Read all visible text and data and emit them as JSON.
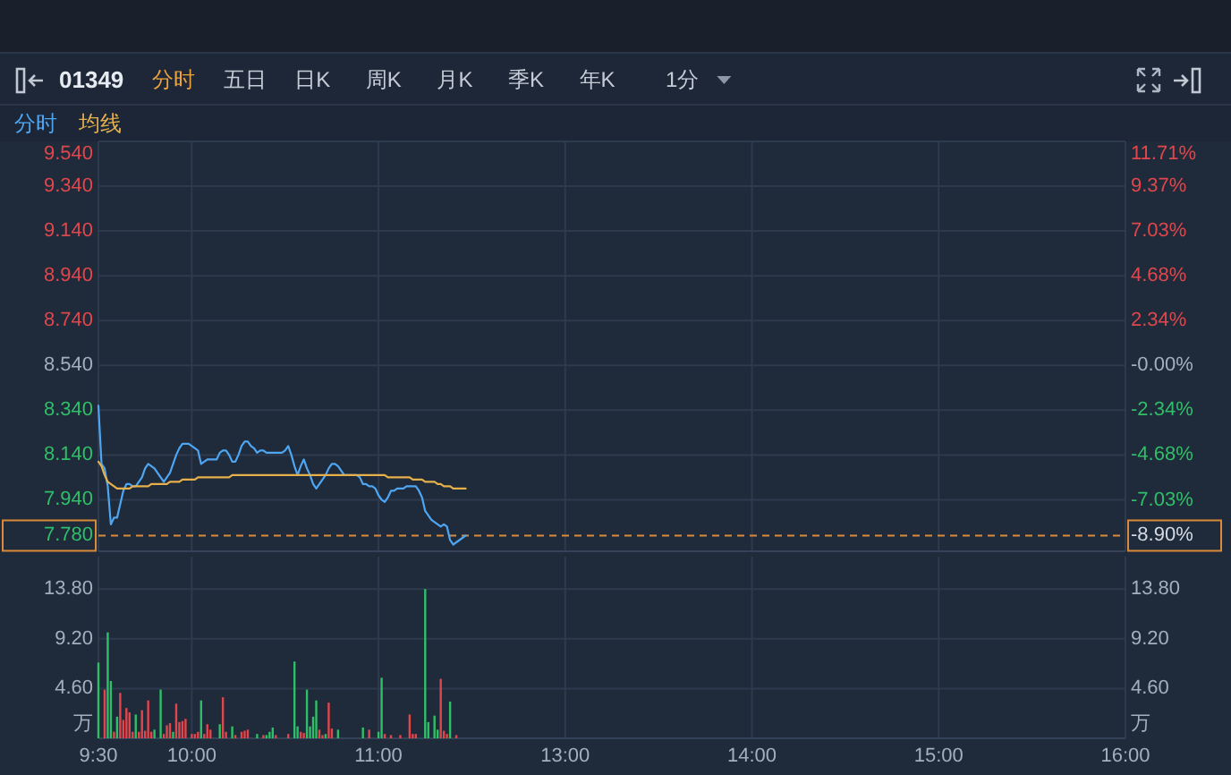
{
  "chart_data": [
    {
      "type": "line",
      "title": "01349",
      "annotations": [
        "分时",
        "五日",
        "日K",
        "周K",
        "月K",
        "季K",
        "年K",
        "1分",
        "-8.90%"
      ],
      "categories": [
        null,
        null,
        null,
        null,
        null,
        null,
        null,
        null,
        null,
        null,
        null,
        null,
        null,
        null,
        null,
        null,
        null,
        null,
        null,
        null,
        null,
        null,
        null,
        null,
        null,
        null,
        null,
        null,
        null,
        null,
        null,
        null,
        null,
        null,
        null,
        null,
        null,
        null,
        null,
        null,
        null,
        null,
        null,
        null,
        null,
        null,
        null,
        null,
        null,
        null,
        null,
        null,
        null,
        null,
        null,
        null,
        null,
        null,
        null,
        null,
        null,
        null,
        null,
        null,
        null,
        null,
        null,
        null,
        null,
        null,
        null,
        null,
        null,
        null,
        null,
        null,
        null,
        null,
        null,
        null,
        null,
        null,
        null,
        null,
        null,
        null,
        null,
        null,
        null,
        null,
        null,
        null,
        null,
        null,
        null,
        null,
        null,
        null,
        null,
        null,
        null,
        null,
        null,
        null,
        null,
        null,
        null,
        null,
        null,
        null,
        null,
        null,
        null,
        null,
        null,
        null,
        null,
        null,
        null,
        null,
        null,
        null,
        null,
        null,
        null,
        null,
        null,
        null,
        null,
        null,
        null,
        null,
        null,
        null,
        null,
        null,
        null,
        null,
        null,
        null,
        null,
        null,
        null,
        null,
        null,
        null,
        null,
        null,
        null,
        null,
        null,
        null,
        null,
        null,
        null,
        null,
        null,
        null,
        null,
        null,
        null,
        null,
        null,
        null,
        null,
        null,
        null,
        null,
        null,
        null,
        null,
        null,
        null,
        null,
        null,
        null,
        null,
        null,
        null,
        null,
        null,
        null,
        null,
        null,
        null,
        null,
        null,
        null,
        null,
        null,
        null,
        null,
        null,
        null,
        null,
        null,
        null,
        null,
        null,
        null,
        null,
        null,
        null,
        null,
        null,
        null,
        null,
        null,
        null,
        null,
        null,
        null,
        null,
        null,
        null,
        null,
        null,
        null,
        null,
        null,
        null,
        null,
        null,
        null,
        null,
        null,
        null,
        null,
        null,
        null,
        null,
        null,
        null,
        null,
        null,
        null,
        null,
        null,
        null,
        null,
        null,
        null,
        null,
        null,
        null,
        null,
        null,
        null,
        null,
        null,
        null,
        null,
        null,
        null,
        null,
        null,
        null,
        null,
        null,
        null,
        null,
        null,
        null,
        null,
        null,
        null,
        null,
        null,
        null,
        null,
        null,
        null,
        null,
        null,
        null,
        null,
        null,
        null,
        null,
        null,
        null,
        null,
        null,
        null,
        null,
        null,
        null,
        null,
        null,
        null,
        null,
        null,
        null,
        null,
        null,
        null,
        null,
        null,
        null,
        null,
        null,
        null,
        null,
        null,
        null,
        null,
        null,
        null,
        null,
        null,
        null,
        null,
        null,
        null,
        null,
        null,
        null,
        null,
        null,
        null,
        null,
        null,
        null,
        null,
        null,
        null,
        null,
        null,
        null,
        null,
        null
      ],
      "series": [
        {
          "name": "分时",
          "color": "#4ea6f2",
          "values": [
            8.36,
            8.1,
            8.08,
            8.0,
            7.83,
            7.86,
            7.86,
            7.92,
            7.98,
            8.01,
            8.01,
            8.0,
            8.0,
            8.02,
            8.04,
            8.08,
            8.1,
            8.09,
            8.08,
            8.06,
            8.04,
            8.02,
            8.04,
            8.06,
            8.1,
            8.14,
            8.17,
            8.19,
            8.19,
            8.19,
            8.18,
            8.17,
            8.16,
            8.1,
            8.11,
            8.12,
            8.12,
            8.12,
            8.12,
            8.15,
            8.16,
            8.16,
            8.14,
            8.11,
            8.11,
            8.14,
            8.18,
            8.2,
            8.2,
            8.18,
            8.17,
            8.15,
            8.16,
            8.16,
            8.15,
            8.15,
            8.15,
            8.15,
            8.15,
            8.15,
            8.16,
            8.18,
            8.14,
            8.09,
            8.05,
            8.09,
            8.12,
            8.08,
            8.05,
            8.01,
            7.99,
            8.01,
            8.03,
            8.05,
            8.08,
            8.1,
            8.1,
            8.09,
            8.07,
            8.05,
            8.05,
            8.05,
            8.05,
            8.05,
            8.04,
            8.01,
            8.01,
            8.0,
            8.0,
            7.99,
            7.96,
            7.94,
            7.93,
            7.95,
            7.98,
            7.98,
            7.99,
            7.99,
            7.99,
            8.0,
            8.0,
            8.0,
            8.0,
            7.98,
            7.95,
            7.89,
            7.87,
            7.85,
            7.84,
            7.83,
            7.82,
            7.83,
            7.82,
            7.76,
            7.74,
            7.75,
            7.76,
            7.77,
            7.78,
            null,
            null,
            null,
            null,
            null,
            null,
            null,
            null,
            null,
            null,
            null,
            null,
            null,
            null,
            null,
            null,
            null,
            null,
            null,
            null,
            null,
            null,
            null,
            null,
            null,
            null,
            null,
            null,
            null,
            null,
            null,
            null,
            null,
            null,
            null,
            null,
            null,
            null,
            null,
            null,
            null,
            null,
            null,
            null,
            null,
            null,
            null,
            null,
            null,
            null,
            null,
            null,
            null,
            null,
            null,
            null,
            null,
            null,
            null,
            null,
            null,
            null,
            null,
            null,
            null,
            null,
            null,
            null,
            null,
            null,
            null,
            null,
            null,
            null,
            null,
            null,
            null,
            null,
            null,
            null,
            null,
            null,
            null,
            null,
            null,
            null,
            null,
            null,
            null,
            null,
            null,
            null,
            null,
            null,
            null,
            null,
            null,
            null,
            null,
            null,
            null,
            null,
            null,
            null,
            null,
            null,
            null,
            null,
            null,
            null,
            null,
            null,
            null,
            null,
            null,
            null,
            null,
            null,
            null,
            null,
            null,
            null,
            null,
            null,
            null,
            null,
            null,
            null,
            null,
            null,
            null,
            null,
            null,
            null,
            null,
            null,
            null,
            null,
            null,
            null,
            null,
            null,
            null,
            null,
            null,
            null,
            null,
            null,
            null,
            null,
            null,
            null,
            null,
            null,
            null,
            null,
            null,
            null,
            null,
            null,
            null,
            null,
            null,
            null,
            null,
            null,
            null,
            null,
            null,
            null,
            null,
            null,
            null,
            null,
            null,
            null,
            null,
            null,
            null,
            null,
            null,
            null,
            null,
            null,
            null,
            null,
            null,
            null,
            null,
            null,
            null,
            null,
            null,
            null,
            null,
            null,
            null,
            null,
            null,
            null,
            null,
            null,
            null,
            null,
            null,
            null,
            null,
            null,
            null,
            null,
            null,
            null
          ]
        },
        {
          "name": "均线",
          "color": "#e6b04b",
          "values": [
            8.11,
            8.09,
            8.05,
            8.02,
            8.01,
            8.0,
            7.99,
            7.99,
            7.99,
            7.99,
            7.99,
            8.0,
            8.0,
            8.0,
            8.0,
            8.0,
            8.0,
            8.01,
            8.01,
            8.01,
            8.01,
            8.01,
            8.01,
            8.02,
            8.02,
            8.02,
            8.02,
            8.03,
            8.03,
            8.03,
            8.03,
            8.03,
            8.04,
            8.04,
            8.04,
            8.04,
            8.04,
            8.04,
            8.04,
            8.04,
            8.04,
            8.04,
            8.04,
            8.05,
            8.05,
            8.05,
            8.05,
            8.05,
            8.05,
            8.05,
            8.05,
            8.05,
            8.05,
            8.05,
            8.05,
            8.05,
            8.05,
            8.05,
            8.05,
            8.05,
            8.05,
            8.05,
            8.05,
            8.05,
            8.05,
            8.05,
            8.05,
            8.05,
            8.05,
            8.05,
            8.05,
            8.05,
            8.05,
            8.05,
            8.05,
            8.05,
            8.05,
            8.05,
            8.05,
            8.05,
            8.05,
            8.05,
            8.05,
            8.05,
            8.05,
            8.05,
            8.05,
            8.05,
            8.05,
            8.05,
            8.05,
            8.05,
            8.05,
            8.04,
            8.04,
            8.04,
            8.04,
            8.04,
            8.04,
            8.04,
            8.04,
            8.03,
            8.03,
            8.03,
            8.03,
            8.02,
            8.02,
            8.02,
            8.02,
            8.01,
            8.01,
            8.0,
            8.0,
            8.0,
            7.99,
            7.99,
            7.99,
            7.99,
            7.99,
            null,
            null,
            null,
            null,
            null,
            null,
            null,
            null,
            null,
            null,
            null,
            null,
            null,
            null,
            null,
            null,
            null,
            null,
            null,
            null,
            null,
            null,
            null,
            null,
            null,
            null,
            null,
            null,
            null,
            null,
            null,
            null,
            null,
            null,
            null,
            null,
            null,
            null,
            null,
            null,
            null,
            null,
            null,
            null,
            null,
            null,
            null,
            null,
            null,
            null,
            null,
            null,
            null,
            null,
            null,
            null,
            null,
            null,
            null,
            null,
            null,
            null,
            null,
            null,
            null,
            null,
            null,
            null,
            null,
            null,
            null,
            null,
            null,
            null,
            null,
            null,
            null,
            null,
            null,
            null,
            null,
            null,
            null,
            null,
            null,
            null,
            null,
            null,
            null,
            null,
            null,
            null,
            null,
            null,
            null,
            null,
            null,
            null,
            null,
            null,
            null,
            null,
            null,
            null,
            null,
            null,
            null,
            null,
            null,
            null,
            null,
            null,
            null,
            null,
            null,
            null,
            null,
            null,
            null,
            null,
            null,
            null,
            null,
            null,
            null,
            null,
            null,
            null,
            null,
            null,
            null,
            null,
            null,
            null,
            null,
            null,
            null,
            null,
            null,
            null,
            null,
            null,
            null,
            null,
            null,
            null,
            null,
            null,
            null,
            null,
            null,
            null,
            null,
            null,
            null,
            null,
            null,
            null,
            null,
            null,
            null,
            null,
            null,
            null,
            null,
            null,
            null,
            null,
            null,
            null,
            null,
            null,
            null,
            null,
            null,
            null,
            null,
            null,
            null,
            null,
            null,
            null,
            null,
            null,
            null,
            null,
            null,
            null,
            null,
            null,
            null,
            null,
            null,
            null,
            null,
            null,
            null,
            null,
            null,
            null,
            null,
            null,
            null,
            null,
            null,
            null,
            null,
            null,
            null,
            null,
            null,
            null
          ]
        }
      ],
      "ylim": [
        7.71,
        9.54
      ],
      "yticks": [
        {
          "value": 7.94,
          "label": "7.940"
        },
        {
          "value": 8.14,
          "label": "8.140"
        },
        {
          "value": 8.34,
          "label": "8.340"
        },
        {
          "value": 8.54,
          "label": "8.540"
        },
        {
          "value": 8.74,
          "label": "8.740"
        },
        {
          "value": 8.94,
          "label": "8.940"
        },
        {
          "value": 9.14,
          "label": "9.140"
        },
        {
          "value": 9.34,
          "label": "9.340"
        },
        {
          "value": 9.54,
          "label": "9.540"
        }
      ],
      "y2lim": [
        -9.72,
        11.71
      ],
      "y2ticks": [
        {
          "value": -7.03,
          "label": "-7.03%"
        },
        {
          "value": -4.68,
          "label": "-4.68%"
        },
        {
          "value": -2.34,
          "label": "-2.34%"
        },
        {
          "value": 0,
          "label": "-0.00%"
        },
        {
          "value": 2.34,
          "label": "2.34%"
        },
        {
          "value": 4.68,
          "label": "4.68%"
        },
        {
          "value": 7.03,
          "label": "7.03%"
        },
        {
          "value": 9.37,
          "label": "9.37%"
        },
        {
          "value": 11.71,
          "label": "11.71%"
        }
      ],
      "tick_labels": "y",
      "grid": true,
      "legend": "top left",
      "ref_lines": [
        {
          "axis": "y",
          "value": 7.78,
          "label": "7.780",
          "color": "#d98a3a",
          "line_style": "dashed"
        }
      ]
    },
    {
      "type": "bar",
      "categories": [
        "9:30",
        null,
        null,
        null,
        null,
        null,
        null,
        null,
        null,
        null,
        null,
        null,
        null,
        null,
        null,
        null,
        null,
        null,
        null,
        null,
        null,
        null,
        null,
        null,
        null,
        null,
        null,
        null,
        null,
        null,
        "10:00",
        null,
        null,
        null,
        null,
        null,
        null,
        null,
        null,
        null,
        null,
        null,
        null,
        null,
        null,
        null,
        null,
        null,
        null,
        null,
        null,
        null,
        null,
        null,
        null,
        null,
        null,
        null,
        null,
        null,
        null,
        null,
        null,
        null,
        null,
        null,
        null,
        null,
        null,
        null,
        null,
        null,
        null,
        null,
        null,
        null,
        null,
        null,
        null,
        null,
        null,
        null,
        null,
        null,
        null,
        null,
        null,
        null,
        null,
        null,
        "11:00",
        null,
        null,
        null,
        null,
        null,
        null,
        null,
        null,
        null,
        null,
        null,
        null,
        null,
        null,
        null,
        null,
        null,
        null,
        null,
        null,
        null,
        null,
        null,
        null,
        null,
        null,
        null,
        null,
        null,
        null,
        null,
        null,
        null,
        null,
        null,
        null,
        null,
        null,
        null,
        null,
        null,
        null,
        null,
        null,
        null,
        null,
        null,
        null,
        null,
        null,
        null,
        null,
        null,
        null,
        null,
        null,
        null,
        null,
        null,
        "13:00",
        null,
        null,
        null,
        null,
        null,
        null,
        null,
        null,
        null,
        null,
        null,
        null,
        null,
        null,
        null,
        null,
        null,
        null,
        null,
        null,
        null,
        null,
        null,
        null,
        null,
        null,
        null,
        null,
        null,
        null,
        null,
        null,
        null,
        null,
        null,
        null,
        null,
        null,
        null,
        null,
        null,
        null,
        null,
        null,
        null,
        null,
        null,
        null,
        null,
        null,
        null,
        null,
        null,
        null,
        null,
        null,
        null,
        null,
        null,
        "14:00",
        null,
        null,
        null,
        null,
        null,
        null,
        null,
        null,
        null,
        null,
        null,
        null,
        null,
        null,
        null,
        null,
        null,
        null,
        null,
        null,
        null,
        null,
        null,
        null,
        null,
        null,
        null,
        null,
        null,
        null,
        null,
        null,
        null,
        null,
        null,
        null,
        null,
        null,
        null,
        null,
        null,
        null,
        null,
        null,
        null,
        null,
        null,
        null,
        null,
        null,
        null,
        null,
        null,
        null,
        null,
        null,
        null,
        null,
        null,
        "15:00",
        null,
        null,
        null,
        null,
        null,
        null,
        null,
        null,
        null,
        null,
        null,
        null,
        null,
        null,
        null,
        null,
        null,
        null,
        null,
        null,
        null,
        null,
        null,
        null,
        null,
        null,
        null,
        null,
        null,
        null,
        null,
        null,
        null,
        null,
        null,
        null,
        null,
        null,
        null,
        null,
        null,
        null,
        null,
        null,
        null,
        null,
        null,
        null,
        null,
        null,
        null,
        null,
        null,
        null,
        null,
        null,
        null,
        null,
        null,
        "16:00"
      ],
      "stacked": true,
      "series": [
        {
          "color": "#e0474c",
          "values": [
            null,
            null,
            4.5,
            null,
            null,
            0.6,
            null,
            4.2,
            1.7,
            2.8,
            2.4,
            0.6,
            null,
            0.6,
            2.6,
            0.7,
            3.5,
            0.6,
            null,
            null,
            null,
            0.4,
            1.2,
            1.4,
            null,
            3.2,
            1.5,
            1.6,
            1.8,
            null,
            0.4,
            0.4,
            0.6,
            null,
            0.4,
            1.3,
            0.8,
            null,
            null,
            null,
            3.8,
            0.6,
            null,
            null,
            0.3,
            null,
            0.6,
            0.7,
            0.8,
            null,
            null,
            null,
            null,
            0.3,
            null,
            null,
            null,
            0.3,
            null,
            null,
            null,
            0.4,
            null,
            null,
            null,
            0.6,
            0.5,
            null,
            null,
            null,
            null,
            0.8,
            0.3,
            null,
            3.3,
            0.9,
            null,
            null,
            null,
            null,
            null,
            null,
            null,
            null,
            null,
            null,
            null,
            0.8,
            null,
            null,
            null,
            null,
            0.4,
            null,
            0.3,
            null,
            null,
            0.3,
            null,
            null,
            2.2,
            0.4,
            0.4,
            null,
            null,
            null,
            null,
            null,
            null,
            null,
            5.5,
            0.7,
            0.4,
            null,
            null,
            0.3,
            null,
            null,
            null,
            null,
            null,
            null,
            null,
            null,
            null,
            null,
            null,
            null,
            null,
            null,
            null,
            null,
            null,
            null,
            null,
            null,
            null,
            null,
            null,
            null,
            null,
            null,
            null,
            null,
            null,
            null,
            null,
            null,
            null,
            null,
            null,
            null,
            null,
            null,
            null,
            null,
            null,
            null,
            null,
            null,
            null,
            null,
            null,
            null,
            null,
            null,
            null,
            null,
            null,
            null,
            null,
            null,
            null,
            null,
            null,
            null,
            null,
            null,
            null,
            null,
            null,
            null,
            null,
            null,
            null,
            null,
            null,
            null,
            null,
            null,
            null,
            null,
            null,
            null,
            null,
            null,
            null,
            null,
            null,
            null,
            null,
            null,
            null,
            null,
            null,
            null,
            null,
            null,
            null,
            null,
            null,
            null,
            null,
            null,
            null,
            null,
            null,
            null,
            null,
            null,
            null,
            null,
            null,
            null,
            null,
            null,
            null,
            null,
            null,
            null,
            null,
            null,
            null,
            null,
            null,
            null,
            null,
            null,
            null,
            null,
            null,
            null,
            null,
            null,
            null,
            null,
            null,
            null,
            null,
            null,
            null,
            null,
            null,
            null,
            null,
            null,
            null,
            null,
            null,
            null,
            null,
            null,
            null,
            null,
            null,
            null,
            null,
            null,
            null,
            null,
            null,
            null,
            null,
            null,
            null,
            null,
            null,
            null,
            null,
            null,
            null,
            null,
            null,
            null,
            null,
            null,
            null,
            null,
            null,
            null,
            null,
            null,
            null,
            null,
            null,
            null,
            null,
            null,
            null,
            null,
            null,
            null,
            null,
            null,
            null,
            null,
            null,
            null,
            null,
            null,
            null,
            null,
            null,
            null,
            null,
            null,
            null,
            null,
            null,
            null,
            null,
            null,
            null,
            null,
            null,
            null,
            null,
            null,
            null,
            null,
            null
          ]
        },
        {
          "color": "#2fbf68",
          "values": [
            7.0,
            null,
            null,
            9.8,
            5.3,
            null,
            2.0,
            null,
            null,
            null,
            null,
            null,
            2.2,
            null,
            null,
            null,
            null,
            null,
            0.8,
            null,
            4.5,
            null,
            null,
            null,
            0.6,
            null,
            null,
            null,
            null,
            null,
            null,
            null,
            null,
            3.5,
            null,
            null,
            null,
            null,
            null,
            1.3,
            null,
            null,
            null,
            1.1,
            null,
            null,
            null,
            null,
            null,
            null,
            null,
            0.4,
            null,
            null,
            0.3,
            0.6,
            1.0,
            null,
            null,
            null,
            null,
            null,
            null,
            7.1,
            1.1,
            null,
            null,
            4.5,
            1.1,
            2.0,
            3.5,
            null,
            null,
            0.4,
            null,
            null,
            null,
            0.8,
            null,
            null,
            null,
            null,
            null,
            null,
            null,
            1.0,
            null,
            null,
            null,
            null,
            0.6,
            5.6,
            null,
            null,
            null,
            null,
            null,
            null,
            null,
            null,
            null,
            null,
            null,
            null,
            null,
            13.8,
            1.5,
            null,
            2.1,
            0.8,
            null,
            null,
            null,
            3.4,
            null,
            null,
            null,
            null,
            null,
            null,
            null,
            null,
            null,
            null,
            null,
            null,
            null,
            null,
            null,
            null,
            null,
            null,
            null,
            null,
            null,
            null,
            null,
            null,
            null,
            null,
            null,
            null,
            null,
            null,
            null,
            null,
            null,
            null,
            null,
            null,
            null,
            null,
            null,
            null,
            null,
            null,
            null,
            null,
            null,
            null,
            null,
            null,
            null,
            null,
            null,
            null,
            null,
            null,
            null,
            null,
            null,
            null,
            null,
            null,
            null,
            null,
            null,
            null,
            null,
            null,
            null,
            null,
            null,
            null,
            null,
            null,
            null,
            null,
            null,
            null,
            null,
            null,
            null,
            null,
            null,
            null,
            null,
            null,
            null,
            null,
            null,
            null,
            null,
            null,
            null,
            null,
            null,
            null,
            null,
            null,
            null,
            null,
            null,
            null,
            null,
            null,
            null,
            null,
            null,
            null,
            null,
            null,
            null,
            null,
            null,
            null,
            null,
            null,
            null,
            null,
            null,
            null,
            null,
            null,
            null,
            null,
            null,
            null,
            null,
            null,
            null,
            null,
            null,
            null,
            null,
            null,
            null,
            null,
            null,
            null,
            null,
            null,
            null,
            null,
            null,
            null,
            null,
            null,
            null,
            null,
            null,
            null,
            null,
            null,
            null,
            null,
            null,
            null,
            null,
            null,
            null,
            null,
            null,
            null,
            null,
            null,
            null,
            null,
            null,
            null,
            null,
            null,
            null,
            null,
            null,
            null,
            null,
            null,
            null,
            null,
            null,
            null,
            null,
            null,
            null,
            null,
            null,
            null,
            null,
            null,
            null,
            null,
            null,
            null,
            null,
            null,
            null,
            null,
            null,
            null,
            null,
            null,
            null,
            null,
            null,
            null,
            null,
            null,
            null,
            null,
            null,
            null,
            null,
            null,
            null,
            null,
            null,
            null,
            null,
            null,
            null
          ]
        }
      ],
      "ylim": [
        0,
        16.8
      ],
      "yticks": [
        {
          "value": 4.6,
          "label": "4.60"
        },
        {
          "value": 9.2,
          "label": "9.20"
        },
        {
          "value": 13.8,
          "label": "13.80"
        }
      ],
      "ylabel": "万",
      "y2lim": [
        0,
        16.8
      ],
      "y2ticks": [
        {
          "value": 4.6,
          "label": "4.60"
        },
        {
          "value": 9.2,
          "label": "9.20"
        },
        {
          "value": 13.8,
          "label": "13.80"
        }
      ],
      "y2label": "万",
      "grid": true
    }
  ]
}
